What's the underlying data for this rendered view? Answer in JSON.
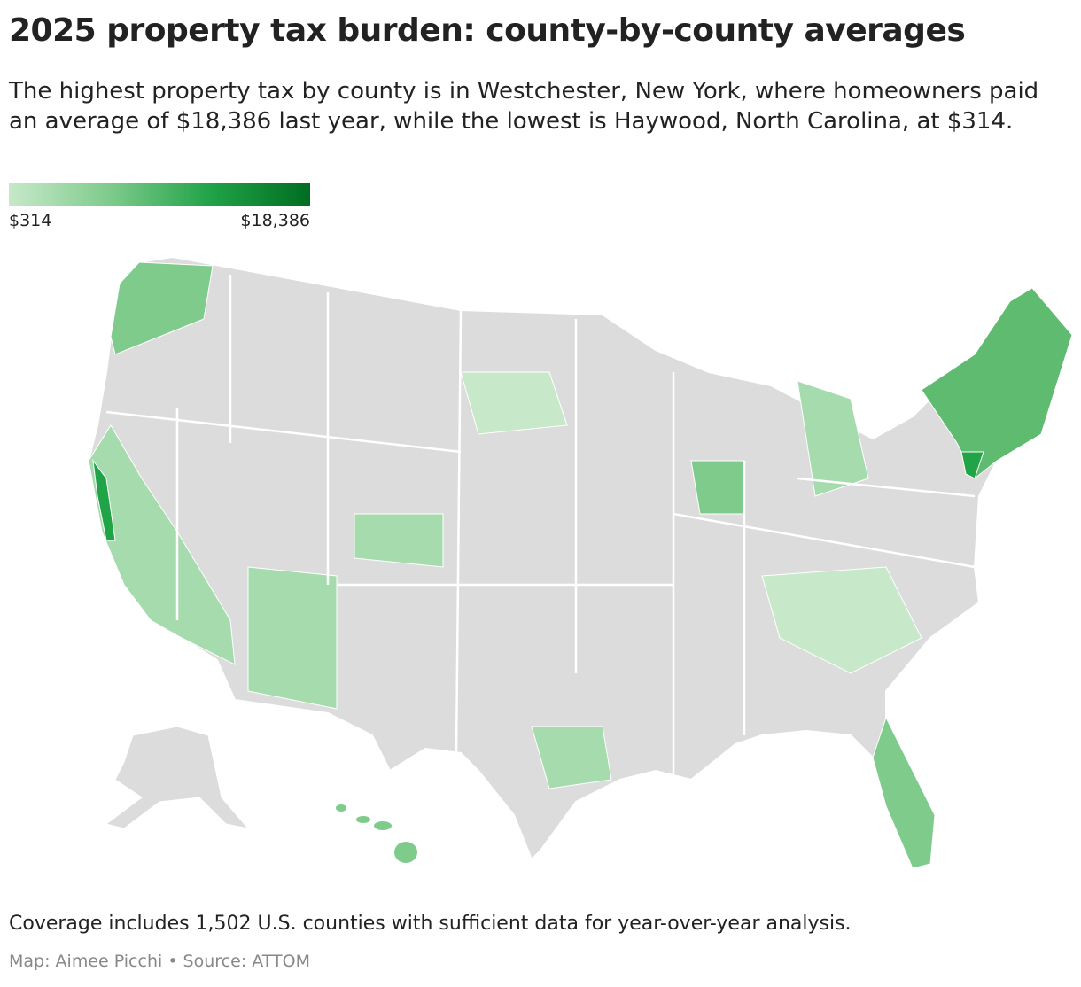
{
  "header": {
    "title": "2025 property tax burden: county-by-county averages",
    "subtitle": "The highest property tax by county is in Westchester, New York, where homeowners paid an average of $18,386 last year, while the lowest is Haywood, North Carolina, at $314."
  },
  "legend": {
    "min": "$314",
    "max": "$18,386",
    "colors": [
      "#c7e9c9",
      "#7fcb8c",
      "#21a348",
      "#006d21"
    ]
  },
  "footer": {
    "note": "Coverage includes 1,502 U.S. counties with sufficient data for year-over-year analysis.",
    "credit": "Map: Aimee Picchi • Source: ATTOM"
  }
}
